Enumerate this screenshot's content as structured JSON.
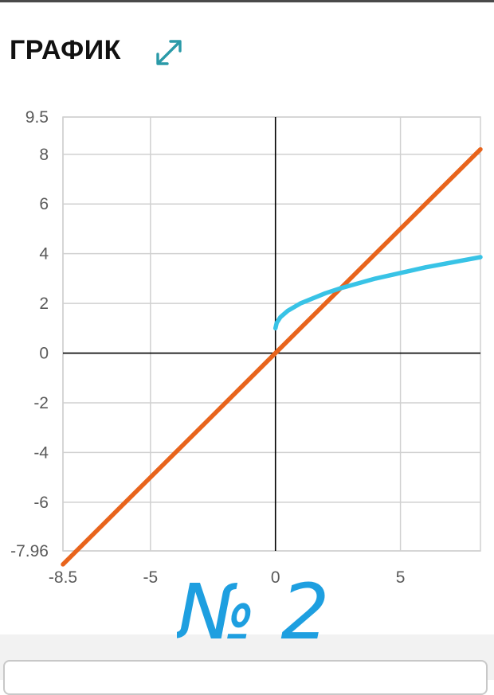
{
  "header": {
    "title": "ГРАФИК",
    "expand_icon": "expand-diagonal-icon",
    "accent_color": "#2a9aa8"
  },
  "chart_data": {
    "type": "line",
    "title": "",
    "xlabel": "",
    "ylabel": "",
    "xlim": [
      -8.5,
      8.2
    ],
    "ylim": [
      -7.96,
      9.5
    ],
    "grid": true,
    "x_ticks": [
      -8.5,
      -5,
      0,
      5
    ],
    "x_tick_labels": [
      "-8.5",
      "-5",
      "0",
      "5"
    ],
    "y_ticks": [
      9.5,
      8,
      6,
      4,
      2,
      0,
      -2,
      -4,
      -6,
      -7.96
    ],
    "y_tick_labels": [
      "9.5",
      "8",
      "6",
      "4",
      "2",
      "0",
      "-2",
      "-4",
      "-6",
      "-7.96"
    ],
    "series": [
      {
        "color": "#e8641c",
        "x": [
          -8.5,
          -6,
          -4,
          -2,
          0,
          2,
          4,
          6,
          8.2
        ],
        "y": [
          -8.5,
          -6,
          -4,
          -2,
          0,
          2,
          4,
          6,
          8.2
        ]
      },
      {
        "color": "#38c3e6",
        "x": [
          0,
          0.05,
          0.2,
          0.5,
          1,
          2,
          2.6,
          4,
          6,
          8.2
        ],
        "y": [
          1,
          1.22,
          1.45,
          1.71,
          2,
          2.41,
          2.61,
          3,
          3.45,
          3.86
        ]
      }
    ]
  },
  "annotation": {
    "text": "№ 2",
    "color": "#1e9fe0"
  }
}
